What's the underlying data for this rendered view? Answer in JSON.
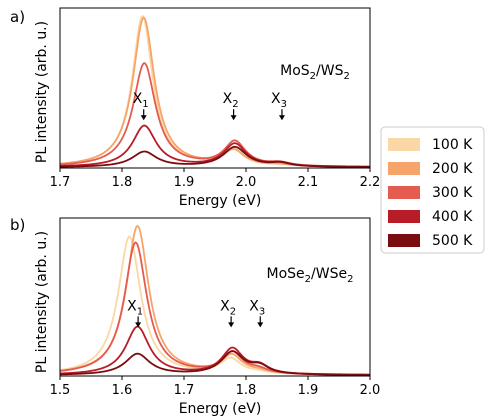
{
  "chart_data": [
    {
      "type": "line",
      "panel_label": "a)",
      "annotation_material": {
        "a": "MoS",
        "a_sub": "2",
        "sep": "/WS",
        "b_sub": "2"
      },
      "xlabel": "Energy (eV)",
      "ylabel": "PL intensity (arb. u.)",
      "xlim": [
        1.7,
        2.2
      ],
      "ylim": [
        0,
        1.05
      ],
      "x_ticks": [
        "1.7",
        "1.8",
        "1.9",
        "2.0",
        "2.1",
        "2.2"
      ],
      "x_tick_values": [
        1.7,
        1.8,
        1.9,
        2.0,
        2.1,
        2.2
      ],
      "grid": false,
      "peak_labels": [
        {
          "label": "X",
          "sub": "1",
          "x": 1.835,
          "y": 0.32
        },
        {
          "label": "X",
          "sub": "2",
          "x": 1.98,
          "y": 0.32
        },
        {
          "label": "X",
          "sub": "3",
          "x": 2.058,
          "y": 0.32
        }
      ],
      "series": [
        {
          "name": "100 K",
          "color": "#fbd7a6",
          "peaks": [
            [
              1.833,
              0.99,
              0.02
            ],
            [
              1.98,
              0.1,
              0.02
            ],
            [
              2.055,
              0.008,
              0.02
            ]
          ],
          "baseline": 0.005
        },
        {
          "name": "200 K",
          "color": "#f7a46a",
          "peaks": [
            [
              1.835,
              0.98,
              0.021
            ],
            [
              1.98,
              0.1,
              0.021
            ],
            [
              2.055,
              0.008,
              0.02
            ]
          ],
          "baseline": 0.005
        },
        {
          "name": "300 K",
          "color": "#e45c4f",
          "peaks": [
            [
              1.836,
              0.68,
              0.022
            ],
            [
              1.982,
              0.16,
              0.021
            ],
            [
              2.055,
              0.02,
              0.02
            ]
          ],
          "baseline": 0.005
        },
        {
          "name": "400 K",
          "color": "#b71c27",
          "peaks": [
            [
              1.836,
              0.27,
              0.023
            ],
            [
              1.982,
              0.15,
              0.022
            ],
            [
              2.055,
              0.022,
              0.02
            ]
          ],
          "baseline": 0.005
        },
        {
          "name": "500 K",
          "color": "#7a0d0f",
          "peaks": [
            [
              1.836,
              0.1,
              0.024
            ],
            [
              1.982,
              0.13,
              0.023
            ],
            [
              2.055,
              0.022,
              0.02
            ]
          ],
          "baseline": 0.005
        }
      ]
    },
    {
      "type": "line",
      "panel_label": "b)",
      "annotation_material": {
        "a": "MoSe",
        "a_sub": "2",
        "sep": "/WSe",
        "b_sub": "2"
      },
      "xlabel": "Energy (eV)",
      "ylabel": "PL intensity (arb. u.)",
      "xlim": [
        1.5,
        2.0
      ],
      "ylim": [
        0,
        1.05
      ],
      "x_ticks": [
        "1.5",
        "1.6",
        "1.7",
        "1.8",
        "1.9",
        "2.0"
      ],
      "x_tick_values": [
        1.5,
        1.6,
        1.7,
        1.8,
        1.9,
        2.0
      ],
      "grid": false,
      "peak_labels": [
        {
          "label": "X",
          "sub": "1",
          "x": 1.626,
          "y": 0.33
        },
        {
          "label": "X",
          "sub": "2",
          "x": 1.776,
          "y": 0.33
        },
        {
          "label": "X",
          "sub": "3",
          "x": 1.823,
          "y": 0.33
        }
      ],
      "series": [
        {
          "name": "100 K",
          "color": "#fbd7a6",
          "peaks": [
            [
              1.612,
              0.92,
              0.022
            ],
            [
              1.775,
              0.1,
              0.02
            ],
            [
              1.82,
              0.01,
              0.018
            ]
          ],
          "baseline": 0.005
        },
        {
          "name": "200 K",
          "color": "#f7a46a",
          "peaks": [
            [
              1.625,
              0.99,
              0.022
            ],
            [
              1.777,
              0.12,
              0.02
            ],
            [
              1.82,
              0.015,
              0.018
            ]
          ],
          "baseline": 0.005
        },
        {
          "name": "300 K",
          "color": "#e45c4f",
          "peaks": [
            [
              1.622,
              0.88,
              0.022
            ],
            [
              1.778,
              0.14,
              0.02
            ],
            [
              1.82,
              0.025,
              0.018
            ]
          ],
          "baseline": 0.005
        },
        {
          "name": "400 K",
          "color": "#b71c27",
          "peaks": [
            [
              1.625,
              0.32,
              0.023
            ],
            [
              1.778,
              0.17,
              0.021
            ],
            [
              1.822,
              0.05,
              0.018
            ]
          ],
          "baseline": 0.005
        },
        {
          "name": "500 K",
          "color": "#7a0d0f",
          "peaks": [
            [
              1.625,
              0.14,
              0.024
            ],
            [
              1.778,
              0.15,
              0.022
            ],
            [
              1.822,
              0.05,
              0.018
            ]
          ],
          "baseline": 0.005
        }
      ]
    }
  ],
  "legend": {
    "placement": "right",
    "entries": [
      {
        "name": "100 K",
        "color": "#fbd7a6"
      },
      {
        "name": "200 K",
        "color": "#f7a46a"
      },
      {
        "name": "300 K",
        "color": "#e45c4f"
      },
      {
        "name": "400 K",
        "color": "#b71c27"
      },
      {
        "name": "500 K",
        "color": "#7a0d0f"
      }
    ]
  }
}
